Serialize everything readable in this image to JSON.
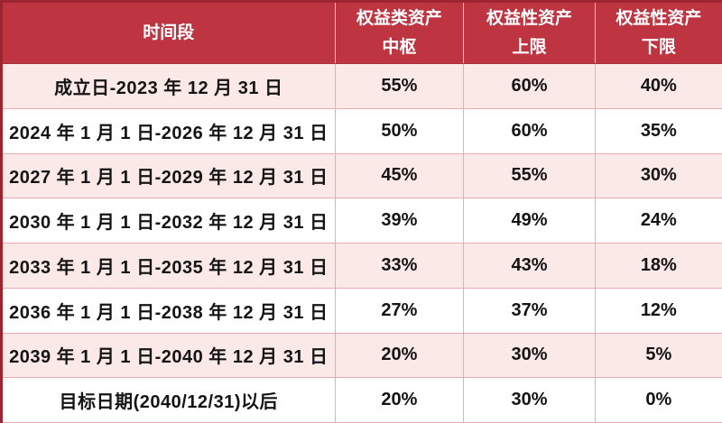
{
  "colors": {
    "header_bg": "#be3441",
    "outer_border": "#9c2430",
    "grid_line": "#eca9af",
    "stripe_row_bg": "#fbe9e8",
    "white_row_bg": "#ffffff",
    "header_text": "#ffffff",
    "body_text": "#141414"
  },
  "header": {
    "time": "时间段",
    "center": {
      "line1": "权益类资产",
      "line2": "中枢"
    },
    "upper": {
      "line1": "权益性资产",
      "line2": "上限"
    },
    "lower": {
      "line1": "权益性资产",
      "line2": "下限"
    }
  },
  "chart_data": {
    "type": "table",
    "title": "",
    "columns": [
      "时间段",
      "权益类资产中枢",
      "权益性资产上限",
      "权益性资产下限"
    ],
    "rows": [
      [
        "成立日-2023 年 12 月 31 日",
        "55%",
        "60%",
        "40%"
      ],
      [
        "2024 年 1 月 1 日-2026 年 12 月 31 日",
        "50%",
        "60%",
        "35%"
      ],
      [
        "2027 年 1 月 1 日-2029 年 12 月 31 日",
        "45%",
        "55%",
        "30%"
      ],
      [
        "2030 年 1 月 1 日-2032 年 12 月 31 日",
        "39%",
        "49%",
        "24%"
      ],
      [
        "2033 年 1 月 1 日-2035 年 12 月 31 日",
        "33%",
        "43%",
        "18%"
      ],
      [
        "2036 年 1 月 1 日-2038 年 12 月 31 日",
        "27%",
        "37%",
        "12%"
      ],
      [
        "2039 年 1 月 1 日-2040 年 12 月 31 日",
        "20%",
        "30%",
        "5%"
      ],
      [
        "目标日期(2040/12/31)以后",
        "20%",
        "30%",
        "0%"
      ]
    ]
  }
}
